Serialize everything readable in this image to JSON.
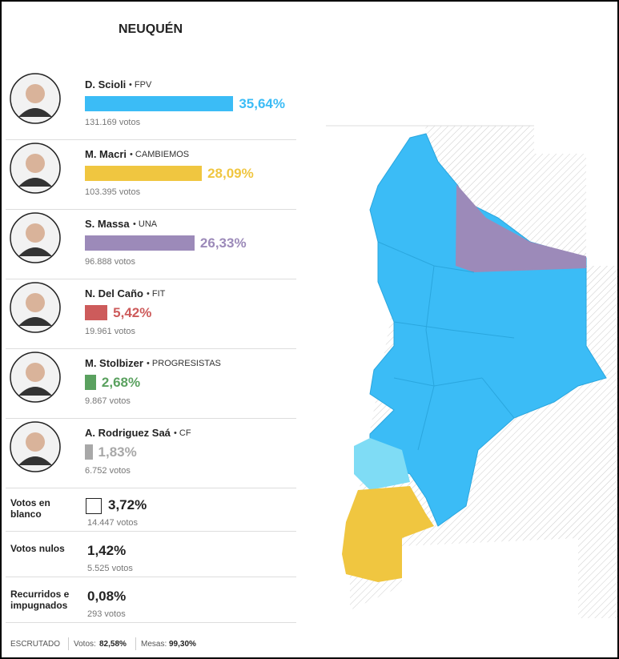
{
  "header": {
    "title": "NEUQUÉN"
  },
  "candidates": [
    {
      "name": "D. Scioli",
      "party": "FPV",
      "percent": {
        "value": 35.64,
        "label": "35,64%"
      },
      "votes": "131.169 votos",
      "color": "#3bbcf6"
    },
    {
      "name": "M. Macri",
      "party": "CAMBIEMOS",
      "percent": {
        "value": 28.09,
        "label": "28,09%"
      },
      "votes": "103.395 votos",
      "color": "#f0c640"
    },
    {
      "name": "S. Massa",
      "party": "UNA",
      "percent": {
        "value": 26.33,
        "label": "26,33%"
      },
      "votes": "96.888 votos",
      "color": "#9c8ab9"
    },
    {
      "name": "N. Del Caño",
      "party": "FIT",
      "percent": {
        "value": 5.42,
        "label": "5,42%"
      },
      "votes": "19.961 votos",
      "color": "#cd5b5b"
    },
    {
      "name": "M. Stolbizer",
      "party": "PROGRESISTAS",
      "percent": {
        "value": 2.68,
        "label": "2,68%"
      },
      "votes": "9.867 votos",
      "color": "#5aa15f"
    },
    {
      "name": "A. Rodriguez Saá",
      "party": "CF",
      "percent": {
        "value": 1.83,
        "label": "1,83%"
      },
      "votes": "6.752 votos",
      "color": "#a8a8a8"
    }
  ],
  "other": [
    {
      "label": "Votos en blanco",
      "percent": "3,72%",
      "votes": "14.447 votos"
    },
    {
      "label": "Votos nulos",
      "percent": "1,42%",
      "votes": "5.525 votos"
    },
    {
      "label": "Recurridos e impugnados",
      "percent": "0,08%",
      "votes": "293 votos"
    }
  ],
  "footer": {
    "label": "ESCRUTADO",
    "votes_label": "Votos:",
    "votes": "82,58%",
    "tables_label": "Mesas:",
    "tables": "99,30%"
  }
}
